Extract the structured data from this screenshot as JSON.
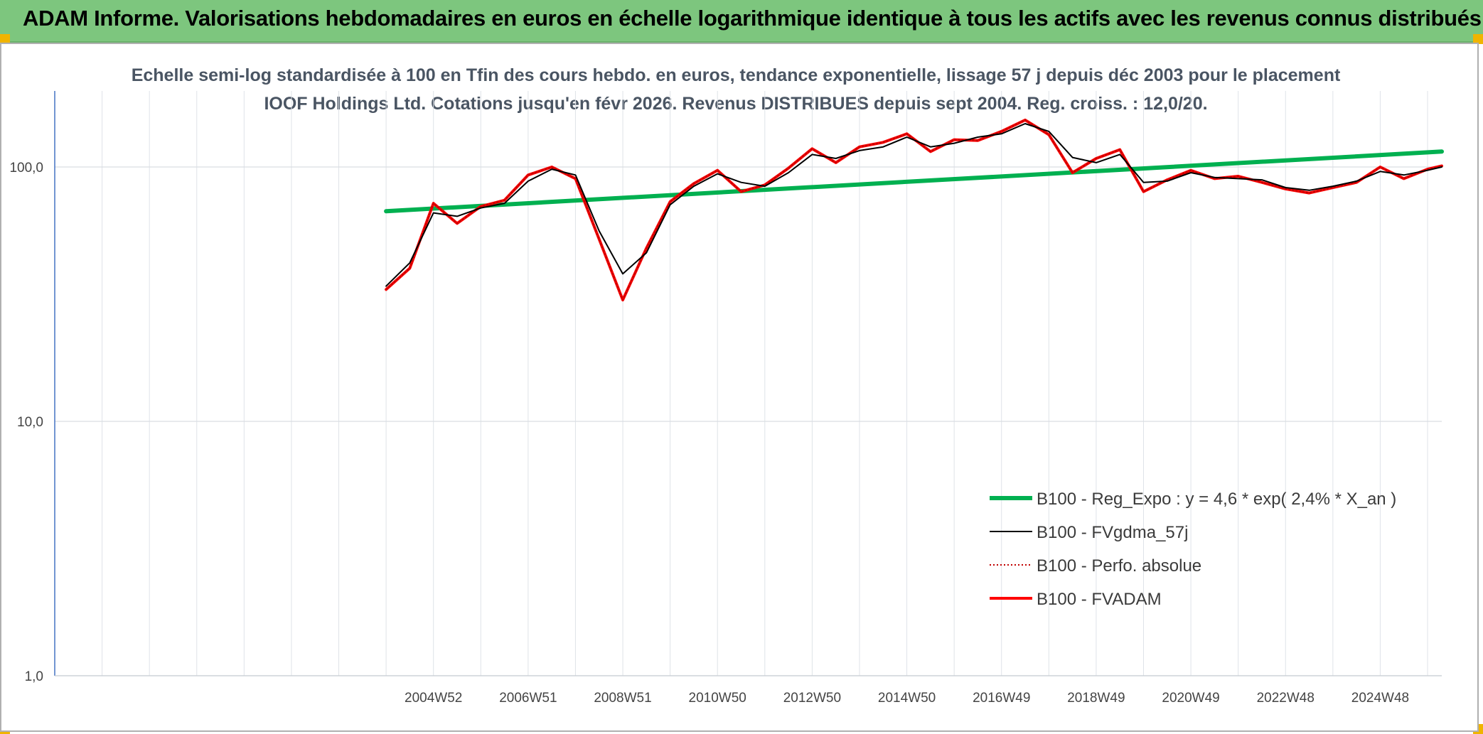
{
  "header": {
    "title": "ADAM Informe. Valorisations hebdomadaires en euros en échelle logarithmique identique à tous les actifs avec les revenus connus distribués"
  },
  "chart_data": {
    "type": "line",
    "title": "Echelle semi-log standardisée à 100 en Tfin des cours hebdo. en euros, tendance exponentielle, lissage 57 j depuis déc 2003 pour le placement IOOF Holdings Ltd. Cotations jusqu'en févr 2026. Revenus DISTRIBUES depuis sept 2004. Reg. croiss. : 12,0/20.",
    "y_scale": "log",
    "ylim": [
      1,
      180
    ],
    "y_ticks": [
      {
        "value": 1,
        "label": "1,0"
      },
      {
        "value": 10,
        "label": "10,0"
      },
      {
        "value": 100,
        "label": "100,0"
      }
    ],
    "xlim": [
      1997.0,
      2026.3
    ],
    "x_ticks": [
      {
        "value": 2005.0,
        "label": "2004W52"
      },
      {
        "value": 2007.0,
        "label": "2006W51"
      },
      {
        "value": 2009.0,
        "label": "2008W51"
      },
      {
        "value": 2011.0,
        "label": "2010W50"
      },
      {
        "value": 2013.0,
        "label": "2012W50"
      },
      {
        "value": 2015.0,
        "label": "2014W50"
      },
      {
        "value": 2017.0,
        "label": "2016W49"
      },
      {
        "value": 2019.0,
        "label": "2018W49"
      },
      {
        "value": 2021.0,
        "label": "2020W49"
      },
      {
        "value": 2023.0,
        "label": "2022W48"
      },
      {
        "value": 2025.0,
        "label": "2024W48"
      }
    ],
    "grid": true,
    "legend_position": "bottom-right",
    "series": [
      {
        "name": "B100 - Reg_Expo : y = 4,6 * exp( 2,4% *  X_an )",
        "color": "#00b050",
        "style": "thick",
        "x": [
          2004.0,
          2026.3
        ],
        "y": [
          67,
          115
        ]
      },
      {
        "name": "B100 - FVgdma_57j",
        "color": "#000000",
        "style": "thin",
        "x": [
          2004.0,
          2004.5,
          2005.0,
          2005.5,
          2006.0,
          2006.5,
          2007.0,
          2007.5,
          2008.0,
          2008.5,
          2009.0,
          2009.5,
          2010.0,
          2010.5,
          2011.0,
          2011.5,
          2012.0,
          2012.5,
          2013.0,
          2013.5,
          2014.0,
          2014.5,
          2015.0,
          2015.5,
          2016.0,
          2016.5,
          2017.0,
          2017.5,
          2018.0,
          2018.5,
          2019.0,
          2019.5,
          2020.0,
          2020.5,
          2021.0,
          2021.5,
          2022.0,
          2022.5,
          2023.0,
          2023.5,
          2024.0,
          2024.5,
          2025.0,
          2025.5,
          2026.0,
          2026.3
        ],
        "y": [
          34,
          42,
          66,
          64,
          69,
          72,
          88,
          98,
          93,
          56,
          38,
          46,
          71,
          84,
          94,
          87,
          84,
          95,
          112,
          108,
          116,
          120,
          131,
          120,
          124,
          131,
          135,
          148,
          138,
          109,
          104,
          112,
          87,
          88,
          95,
          91,
          90,
          89,
          83,
          81,
          84,
          88,
          96,
          93,
          97,
          100
        ]
      },
      {
        "name": "B100 - Perfo. absolue",
        "color": "#c00000",
        "style": "dotted",
        "x": [
          2004.0,
          2004.5,
          2005.0,
          2005.5,
          2006.0,
          2006.5,
          2007.0,
          2007.5,
          2008.0,
          2008.5,
          2009.0,
          2009.5,
          2010.0,
          2010.5,
          2011.0,
          2011.5,
          2012.0,
          2012.5,
          2013.0,
          2013.5,
          2014.0,
          2014.5,
          2015.0,
          2015.5,
          2016.0,
          2016.5,
          2017.0,
          2017.5,
          2018.0,
          2018.5,
          2019.0,
          2019.5,
          2020.0,
          2020.5,
          2021.0,
          2021.5,
          2022.0,
          2022.5,
          2023.0,
          2023.5,
          2024.0,
          2024.5,
          2025.0,
          2025.5,
          2026.0,
          2026.3
        ],
        "y": [
          33,
          40,
          72,
          60,
          70,
          74,
          93,
          100,
          90,
          52,
          30,
          48,
          73,
          86,
          97,
          80,
          85,
          99,
          118,
          104,
          120,
          125,
          135,
          115,
          128,
          127,
          138,
          153,
          134,
          95,
          108,
          117,
          80,
          89,
          97,
          90,
          92,
          87,
          82,
          79,
          83,
          87,
          100,
          90,
          98,
          101
        ]
      },
      {
        "name": "B100 - FVADAM",
        "color": "#ff0000",
        "style": "thick",
        "x": [
          2004.0,
          2004.5,
          2005.0,
          2005.5,
          2006.0,
          2006.5,
          2007.0,
          2007.5,
          2008.0,
          2008.5,
          2009.0,
          2009.5,
          2010.0,
          2010.5,
          2011.0,
          2011.5,
          2012.0,
          2012.5,
          2013.0,
          2013.5,
          2014.0,
          2014.5,
          2015.0,
          2015.5,
          2016.0,
          2016.5,
          2017.0,
          2017.5,
          2018.0,
          2018.5,
          2019.0,
          2019.5,
          2020.0,
          2020.5,
          2021.0,
          2021.5,
          2022.0,
          2022.5,
          2023.0,
          2023.5,
          2024.0,
          2024.5,
          2025.0,
          2025.5,
          2026.0,
          2026.3
        ],
        "y": [
          33,
          40,
          72,
          60,
          70,
          74,
          93,
          100,
          90,
          52,
          30,
          48,
          73,
          86,
          97,
          80,
          85,
          99,
          118,
          104,
          120,
          125,
          135,
          115,
          128,
          127,
          138,
          153,
          134,
          95,
          108,
          117,
          80,
          89,
          97,
          90,
          92,
          87,
          82,
          79,
          83,
          87,
          100,
          90,
          98,
          101
        ]
      }
    ]
  }
}
